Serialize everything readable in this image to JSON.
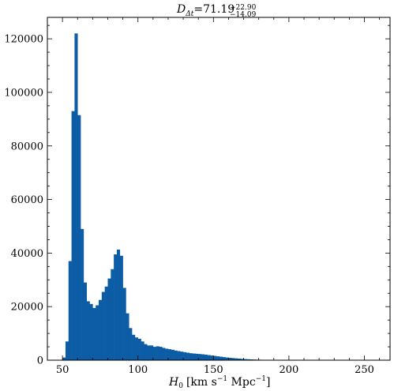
{
  "chart_data": {
    "type": "bar",
    "title_main": "D",
    "title_sub": "Δt",
    "title_value": "=71.19",
    "title_upper": "+22.90",
    "title_lower": "−14.09",
    "xlabel_var": "H",
    "xlabel_var_sub": "0",
    "xlabel_units_a": "[km s",
    "xlabel_exp_a": "−1",
    "xlabel_units_b": " Mpc",
    "xlabel_exp_b": "−1",
    "xlabel_close": "]",
    "xlim": [
      40,
      267
    ],
    "ylim": [
      0,
      128000
    ],
    "xticks": [
      50,
      100,
      150,
      200,
      250
    ],
    "xtick_labels": [
      "50",
      "100",
      "150",
      "200",
      "250"
    ],
    "yticks": [
      0,
      20000,
      40000,
      60000,
      80000,
      100000,
      120000
    ],
    "ytick_labels": [
      "0",
      "20000",
      "40000",
      "60000",
      "80000",
      "100000",
      "120000"
    ],
    "bar_color": "#0C5DA5",
    "bin_width": 2,
    "bins_start": 50,
    "values": [
      1000,
      7000,
      37000,
      93000,
      122000,
      91500,
      49000,
      29000,
      22000,
      21000,
      19500,
      20500,
      22500,
      25500,
      27500,
      30500,
      34000,
      39500,
      41300,
      39000,
      27000,
      17500,
      12000,
      9500,
      8500,
      8000,
      7000,
      6000,
      5500,
      5500,
      5000,
      5200,
      5000,
      4600,
      4300,
      4100,
      3900,
      3600,
      3400,
      3200,
      3000,
      2800,
      2600,
      2500,
      2400,
      2300,
      2200,
      2050,
      1900,
      1750,
      1600,
      1450,
      1300,
      1150,
      1000,
      900,
      800,
      700,
      600,
      500,
      420,
      350,
      300,
      250,
      200,
      170,
      140,
      110,
      90,
      80,
      70,
      60,
      50,
      45,
      40,
      35,
      30,
      25,
      20,
      18,
      15,
      12,
      10,
      8,
      7,
      6,
      5,
      4,
      3,
      3,
      2,
      2,
      1,
      1,
      1,
      1,
      0,
      0,
      0,
      0,
      0,
      0,
      0,
      0
    ]
  }
}
